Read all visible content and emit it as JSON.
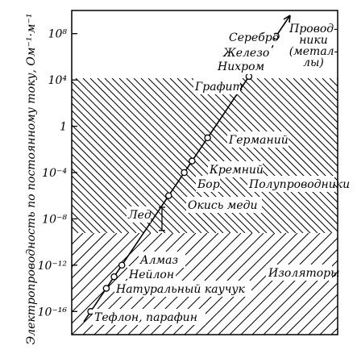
{
  "chart_data": {
    "type": "scatter",
    "title": "",
    "ylabel": "Электропроводность по постоянному току, Ом⁻¹·м⁻¹",
    "y_scale": "log",
    "ylim": [
      1e-18,
      10000000000.0
    ],
    "y_ticks": [
      {
        "value": 100000000.0,
        "label": "10⁸"
      },
      {
        "value": 10000.0,
        "label": "10⁴"
      },
      {
        "value": 1,
        "label": "1"
      },
      {
        "value": 0.0001,
        "label": "10⁻⁴"
      },
      {
        "value": 1e-08,
        "label": "10⁻⁸"
      },
      {
        "value": 1e-12,
        "label": "10⁻¹²"
      },
      {
        "value": 1e-16,
        "label": "10⁻¹⁶"
      }
    ],
    "regions": [
      {
        "name": "Проводники (металлы)",
        "lines": [
          "Провод-",
          "ники",
          "(метал-",
          "лы)"
        ],
        "hatch": "none"
      },
      {
        "name": "Полупроводники",
        "range": [
          1e-07,
          10000.0
        ],
        "hatch": "dense"
      },
      {
        "name": "Изоляторы",
        "range": [
          1e-18,
          1e-07
        ],
        "hatch": "sparse"
      }
    ],
    "materials": [
      {
        "name": "Серебро",
        "conductivity": 60000000.0
      },
      {
        "name": "Железо",
        "conductivity": 10000000.0
      },
      {
        "name": "Нихром",
        "conductivity": 1000000.0
      },
      {
        "name": "Графит",
        "conductivity": 20000.0
      },
      {
        "name": "Германий",
        "conductivity": 0.1
      },
      {
        "name": "Кремний",
        "conductivity": 0.001
      },
      {
        "name": "Бор",
        "conductivity": 0.0001
      },
      {
        "name": "Окись меди",
        "conductivity": 1e-06
      },
      {
        "name": "Лед",
        "range": [
          1e-09,
          1e-07
        ]
      },
      {
        "name": "Алмаз",
        "conductivity": 1e-12
      },
      {
        "name": "Нейлон",
        "conductivity": 1e-13
      },
      {
        "name": "Натуральный каучук",
        "conductivity": 1e-14
      },
      {
        "name": "Тефлон, парафин",
        "conductivity": 1e-16
      }
    ]
  }
}
